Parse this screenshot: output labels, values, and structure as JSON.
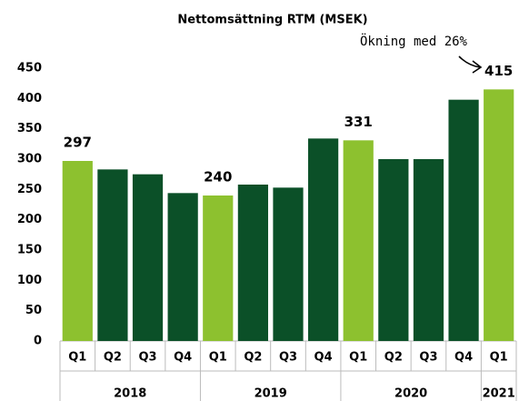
{
  "chart_data": {
    "type": "bar",
    "title": "Nettomsättning RTM (MSEK)",
    "groups": [
      {
        "name": "2018",
        "categories": [
          "Q1",
          "Q2",
          "Q3",
          "Q4"
        ]
      },
      {
        "name": "2019",
        "categories": [
          "Q1",
          "Q2",
          "Q3",
          "Q4"
        ]
      },
      {
        "name": "2020",
        "categories": [
          "Q1",
          "Q2",
          "Q3",
          "Q4"
        ]
      },
      {
        "name": "2021",
        "categories": [
          "Q1"
        ]
      }
    ],
    "values": [
      297,
      283,
      275,
      244,
      240,
      258,
      253,
      334,
      331,
      300,
      300,
      398,
      415
    ],
    "value_labels": [
      "297",
      null,
      null,
      null,
      "240",
      null,
      null,
      null,
      "331",
      null,
      null,
      null,
      "415"
    ],
    "colors": [
      "#8dc12f",
      "#0b5028",
      "#0b5028",
      "#0b5028",
      "#8dc12f",
      "#0b5028",
      "#0b5028",
      "#0b5028",
      "#8dc12f",
      "#0b5028",
      "#0b5028",
      "#0b5028",
      "#8dc12f"
    ],
    "annotation": "Ökning med 26%",
    "ylim": [
      0,
      450
    ],
    "yticks": [
      0,
      50,
      100,
      150,
      200,
      250,
      300,
      350,
      400,
      450
    ],
    "grid": false
  }
}
